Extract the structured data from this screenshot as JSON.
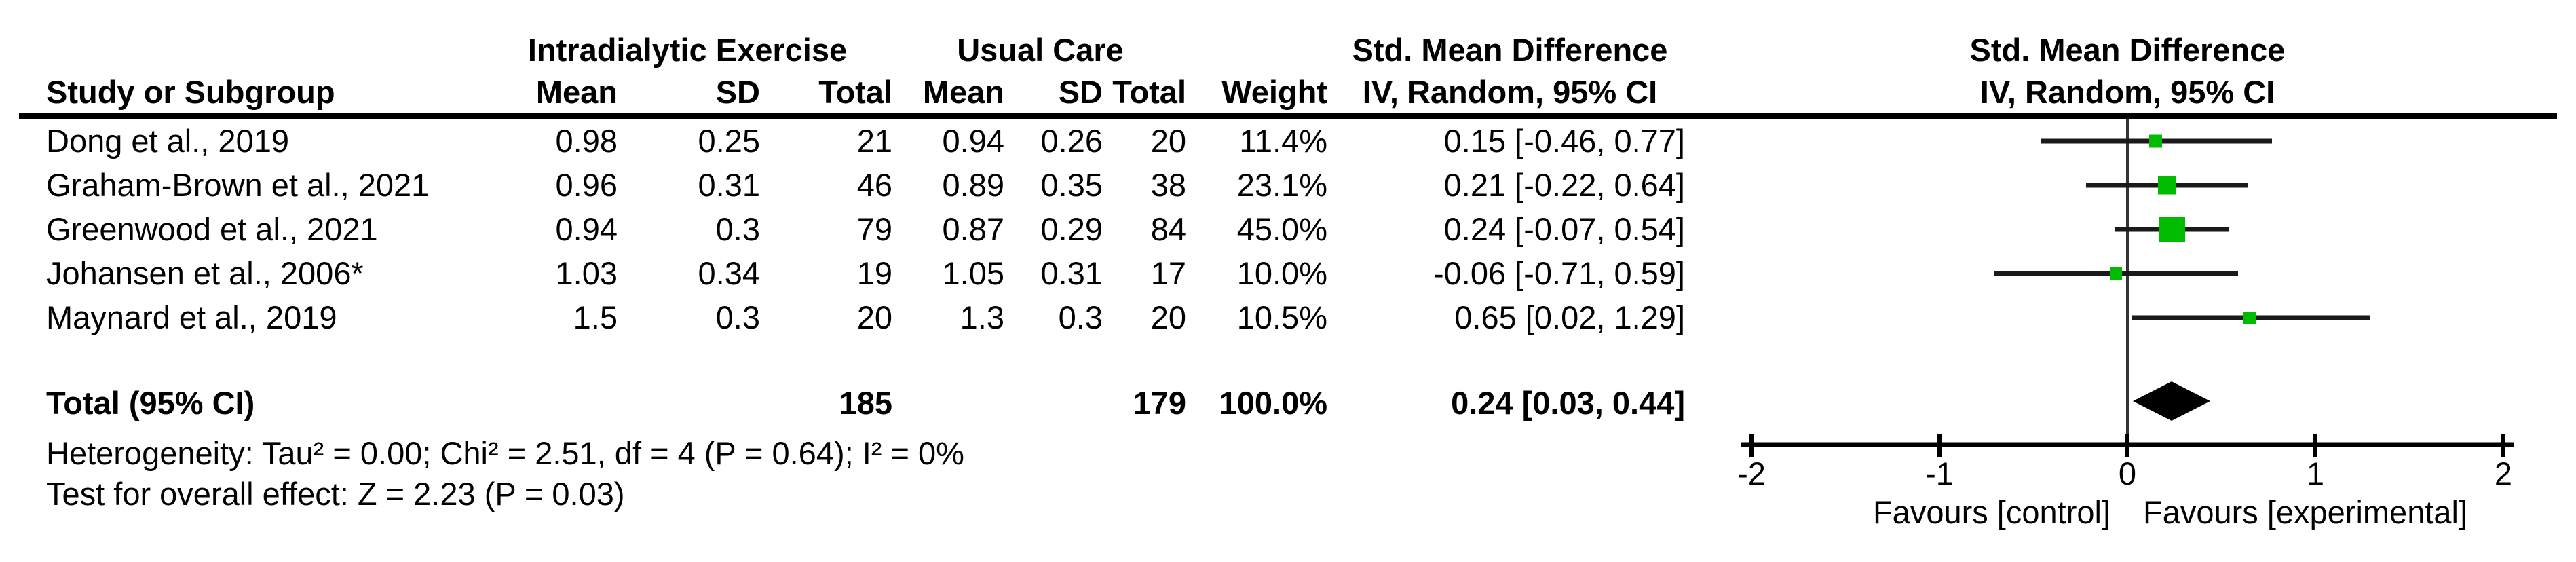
{
  "figure": {
    "group_headers": {
      "experimental": "Intradialytic Exercise",
      "control": "Usual Care",
      "effect_column": "Std. Mean Difference",
      "effect_plot": "Std. Mean Difference"
    },
    "column_headers": {
      "study": "Study or Subgroup",
      "mean1": "Mean",
      "sd1": "SD",
      "total1": "Total",
      "mean2": "Mean",
      "sd2": "SD",
      "total2": "Total",
      "weight": "Weight",
      "effect_method": "IV, Random, 95% CI",
      "effect_method_plot": "IV, Random, 95% CI"
    },
    "rows": [
      {
        "study": "Dong et al., 2019",
        "mean1": "0.98",
        "sd1": "0.25",
        "total1": "21",
        "mean2": "0.94",
        "sd2": "0.26",
        "total2": "20",
        "weight": "11.4%",
        "ci": "0.15 [-0.46, 0.77]"
      },
      {
        "study": "Graham-Brown et al., 2021",
        "mean1": "0.96",
        "sd1": "0.31",
        "total1": "46",
        "mean2": "0.89",
        "sd2": "0.35",
        "total2": "38",
        "weight": "23.1%",
        "ci": "0.21 [-0.22, 0.64]"
      },
      {
        "study": "Greenwood et al., 2021",
        "mean1": "0.94",
        "sd1": "0.3",
        "total1": "79",
        "mean2": "0.87",
        "sd2": "0.29",
        "total2": "84",
        "weight": "45.0%",
        "ci": "0.24 [-0.07, 0.54]"
      },
      {
        "study": "Johansen et al., 2006*",
        "mean1": "1.03",
        "sd1": "0.34",
        "total1": "19",
        "mean2": "1.05",
        "sd2": "0.31",
        "total2": "17",
        "weight": "10.0%",
        "ci": "-0.06 [-0.71, 0.59]"
      },
      {
        "study": "Maynard et al., 2019",
        "mean1": "1.5",
        "sd1": "0.3",
        "total1": "20",
        "mean2": "1.3",
        "sd2": "0.3",
        "total2": "20",
        "weight": "10.5%",
        "ci": "0.65 [0.02, 1.29]"
      }
    ],
    "total_row": {
      "label": "Total (95% CI)",
      "total1": "185",
      "total2": "179",
      "weight": "100.0%",
      "ci": "0.24 [0.03, 0.44]"
    },
    "footer": {
      "heterogeneity": "Heterogeneity: Tau² = 0.00; Chi² = 2.51, df = 4 (P = 0.64); I² = 0%",
      "overall_effect": "Test for overall effect: Z = 2.23 (P = 0.03)"
    }
  },
  "chart_data": {
    "type": "forest",
    "title": "Std. Mean Difference",
    "method_label": "IV, Random, 95% CI",
    "x_range": [
      -2,
      2
    ],
    "x_ticks": [
      -2,
      -1,
      0,
      1,
      2
    ],
    "x_tick_labels": [
      "-2",
      "-1",
      "0",
      "1",
      "2"
    ],
    "axis_labels": {
      "left": "Favours [control]",
      "right": "Favours [experimental]"
    },
    "studies": [
      {
        "name": "Dong et al., 2019",
        "smd": 0.15,
        "ci_low": -0.46,
        "ci_high": 0.77,
        "weight_pct": 11.4
      },
      {
        "name": "Graham-Brown et al., 2021",
        "smd": 0.21,
        "ci_low": -0.22,
        "ci_high": 0.64,
        "weight_pct": 23.1
      },
      {
        "name": "Greenwood et al., 2021",
        "smd": 0.24,
        "ci_low": -0.07,
        "ci_high": 0.54,
        "weight_pct": 45.0
      },
      {
        "name": "Johansen et al., 2006*",
        "smd": -0.06,
        "ci_low": -0.71,
        "ci_high": 0.59,
        "weight_pct": 10.0
      },
      {
        "name": "Maynard et al., 2019",
        "smd": 0.65,
        "ci_low": 0.02,
        "ci_high": 1.29,
        "weight_pct": 10.5
      }
    ],
    "total": {
      "smd": 0.24,
      "ci_low": 0.03,
      "ci_high": 0.44,
      "weight_pct": 100.0
    },
    "colors": {
      "marker_green": "#00BC00",
      "diamond_black": "#000000",
      "line_black": "#1a1a1a",
      "zero_line": "#333333"
    }
  }
}
